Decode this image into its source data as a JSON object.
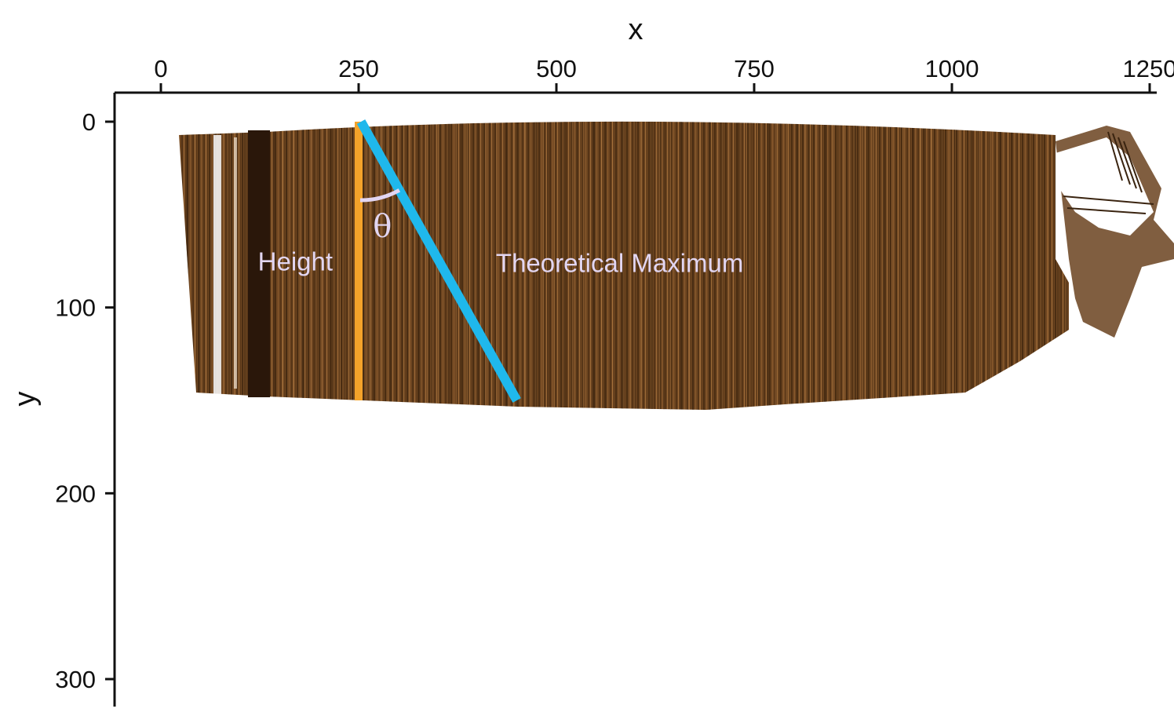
{
  "chart_data": {
    "type": "image",
    "xlabel": "x",
    "ylabel": "y",
    "xlim": [
      -120,
      1260
    ],
    "ylim": [
      320,
      -15
    ],
    "x_axis_position": "top",
    "y_axis_inverted": true,
    "xticks": [
      0,
      250,
      500,
      750,
      1000,
      1250
    ],
    "xtick_labels": [
      "0",
      "250",
      "500",
      "750",
      "1000",
      "1250"
    ],
    "yticks": [
      0,
      100,
      200,
      300
    ],
    "ytick_labels": [
      "0",
      "100",
      "200",
      "300"
    ],
    "grid": false,
    "overlays": [
      {
        "name": "height-line",
        "color": "#f5a32a",
        "x": [
          250,
          250
        ],
        "y": [
          0,
          150
        ]
      },
      {
        "name": "theoretical-maximum-line",
        "color": "#1fb8ec",
        "x": [
          253,
          450
        ],
        "y": [
          0,
          150
        ]
      }
    ],
    "annotations": [
      {
        "name": "height-label",
        "text": "Height",
        "x": 170,
        "y": 80
      },
      {
        "name": "theoretical-maximum-label",
        "text": "Theoretical Maximum",
        "x": 580,
        "y": 81
      },
      {
        "name": "theta-label",
        "text": "θ",
        "x": 280,
        "y": 62
      }
    ],
    "image_description_colors": {
      "surface": "#6b4420",
      "surface_dark": "#3a2410",
      "annotation_text": "#e2d6f2"
    }
  }
}
